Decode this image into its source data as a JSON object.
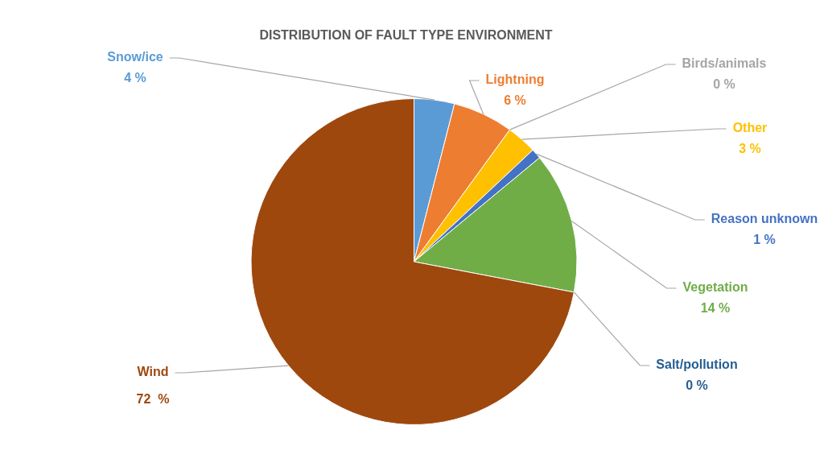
{
  "chart_data": {
    "type": "pie",
    "title": "DISTRIBUTION OF FAULT TYPE ENVIRONMENT",
    "categories": [
      "Snow/ice",
      "Lightning",
      "Birds/animals",
      "Other",
      "Reason unknown",
      "Vegetation",
      "Salt/pollution",
      "Wind"
    ],
    "values": [
      4,
      6,
      0,
      3,
      1,
      14,
      0,
      72
    ],
    "colors": [
      "#5b9bd5",
      "#ed7d31",
      "#a5a5a5",
      "#ffc000",
      "#4472c4",
      "#70ad47",
      "#255e91",
      "#9e480e"
    ],
    "value_labels": [
      "4 %",
      "6 %",
      "0 %",
      "3 %",
      "1 %",
      "14 %",
      "0 %",
      "72  %"
    ]
  }
}
